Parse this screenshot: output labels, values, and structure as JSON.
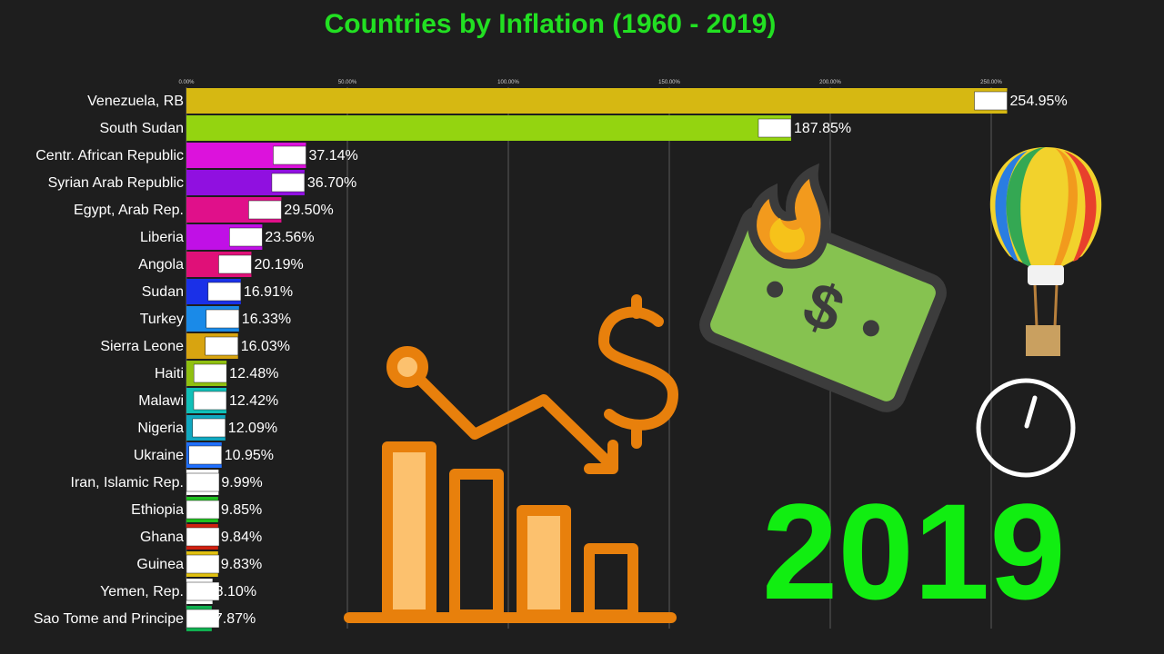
{
  "title": "Countries by Inflation (1960 - 2019)",
  "year": "2019",
  "chart_data": {
    "type": "bar",
    "orientation": "horizontal",
    "title": "Countries by Inflation (1960 - 2019)",
    "xlim": [
      0,
      250
    ],
    "ticks": [
      0,
      50,
      100,
      150,
      200,
      250
    ],
    "tick_labels": [
      "0.00%",
      "50.00%",
      "100.00%",
      "150.00%",
      "200.00%",
      "250.00%"
    ],
    "categories": [
      "Venezuela, RB",
      "South Sudan",
      "Centr. African Republic",
      "Syrian Arab Republic",
      "Egypt, Arab Rep.",
      "Liberia",
      "Angola",
      "Sudan",
      "Turkey",
      "Sierra Leone",
      "Haiti",
      "Malawi",
      "Nigeria",
      "Ukraine",
      "Iran, Islamic Rep.",
      "Ethiopia",
      "Ghana",
      "Guinea",
      "Yemen, Rep.",
      "Sao Tome and Principe"
    ],
    "values": [
      254.95,
      187.85,
      37.14,
      36.7,
      29.5,
      23.56,
      20.19,
      16.91,
      16.33,
      16.03,
      12.48,
      12.42,
      12.09,
      10.95,
      9.99,
      9.85,
      9.84,
      9.83,
      8.1,
      7.87
    ],
    "value_labels": [
      "254.95%",
      "187.85%",
      "37.14%",
      "36.70%",
      "29.50%",
      "23.56%",
      "20.19%",
      "16.91%",
      "16.33%",
      "16.03%",
      "12.48%",
      "12.42%",
      "12.09%",
      "10.95%",
      "9.99%",
      "9.85%",
      "9.84%",
      "9.83%",
      "8.10%",
      "7.87%"
    ],
    "colors": [
      "#d6b812",
      "#94d410",
      "#dc12dc",
      "#9010e0",
      "#e0108a",
      "#c010e6",
      "#e01078",
      "#1a30e8",
      "#1a8ae8",
      "#d8a410",
      "#90c010",
      "#10c0b8",
      "#10a8c0",
      "#2070ff",
      "#ffffff",
      "#20c020",
      "#d02010",
      "#e0c010",
      "#ffffff",
      "#10b050"
    ]
  },
  "decorations": {
    "chart_icon_color": "#e8800c",
    "bill_color": "#86c250",
    "flame_color": "#f29a1d"
  }
}
